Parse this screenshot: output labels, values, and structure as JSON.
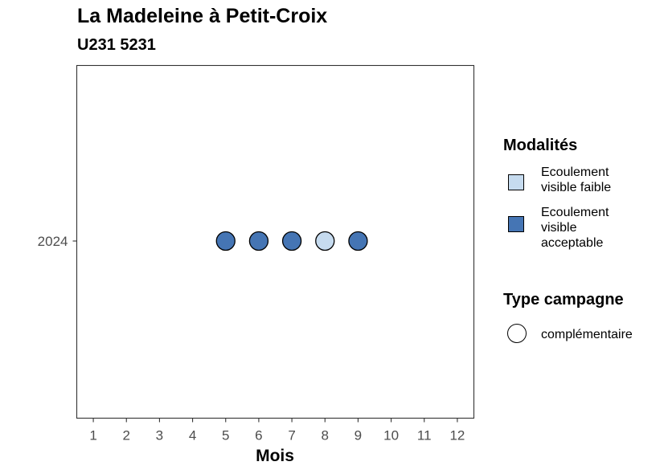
{
  "chart_data": {
    "type": "scatter",
    "title": "La Madeleine à Petit-Croix",
    "subtitle": "U231 5231",
    "xlabel": "Mois",
    "ylabel": "",
    "x_ticks": [
      "1",
      "2",
      "3",
      "4",
      "5",
      "6",
      "7",
      "8",
      "9",
      "10",
      "11",
      "12"
    ],
    "xlim": [
      0.5,
      12.5
    ],
    "y_ticks": [
      "2024"
    ],
    "points": [
      {
        "x": 5,
        "y": "2024",
        "modalite": "Ecoulement visible acceptable",
        "type_campagne": "complémentaire"
      },
      {
        "x": 6,
        "y": "2024",
        "modalite": "Ecoulement visible acceptable",
        "type_campagne": "complémentaire"
      },
      {
        "x": 7,
        "y": "2024",
        "modalite": "Ecoulement visible acceptable",
        "type_campagne": "complémentaire"
      },
      {
        "x": 8,
        "y": "2024",
        "modalite": "Ecoulement visible faible",
        "type_campagne": "complémentaire"
      },
      {
        "x": 9,
        "y": "2024",
        "modalite": "Ecoulement visible acceptable",
        "type_campagne": "complémentaire"
      }
    ],
    "grid": false,
    "legend_position": "right",
    "legend": {
      "modalites_title": "Modalités",
      "modalites": [
        {
          "label": "Ecoulement visible faible",
          "color": "#c6dbef"
        },
        {
          "label": "Ecoulement visible acceptable",
          "color": "#4575b4"
        }
      ],
      "type_title": "Type campagne",
      "types": [
        {
          "label": "complémentaire",
          "shape": "circle"
        }
      ]
    }
  }
}
